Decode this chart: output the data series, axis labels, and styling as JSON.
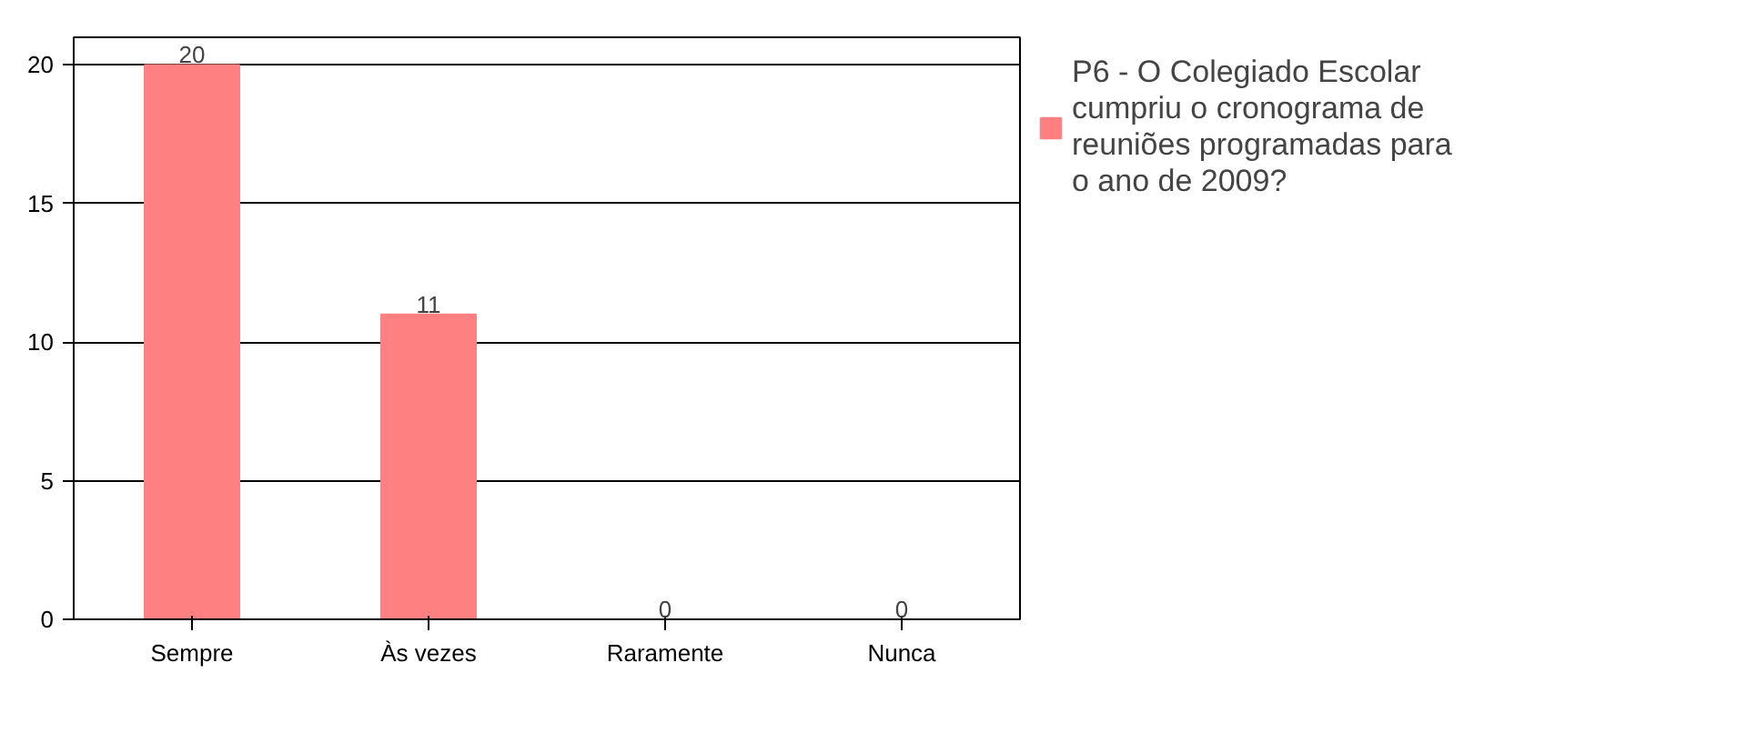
{
  "chart_data": {
    "type": "bar",
    "categories": [
      "Sempre",
      "Às vezes",
      "Raramente",
      "Nunca"
    ],
    "series": [
      {
        "name": "P6 - O Colegiado Escolar cumpriu o cronograma de reuniões programadas para o ano de 2009?",
        "color": "#ff8080",
        "values": [
          20,
          11,
          0,
          0
        ]
      }
    ],
    "ylim": [
      0,
      21
    ],
    "yticks": [
      0,
      5,
      10,
      15,
      20
    ],
    "grid": "y",
    "legend": "right",
    "data_labels": true
  }
}
